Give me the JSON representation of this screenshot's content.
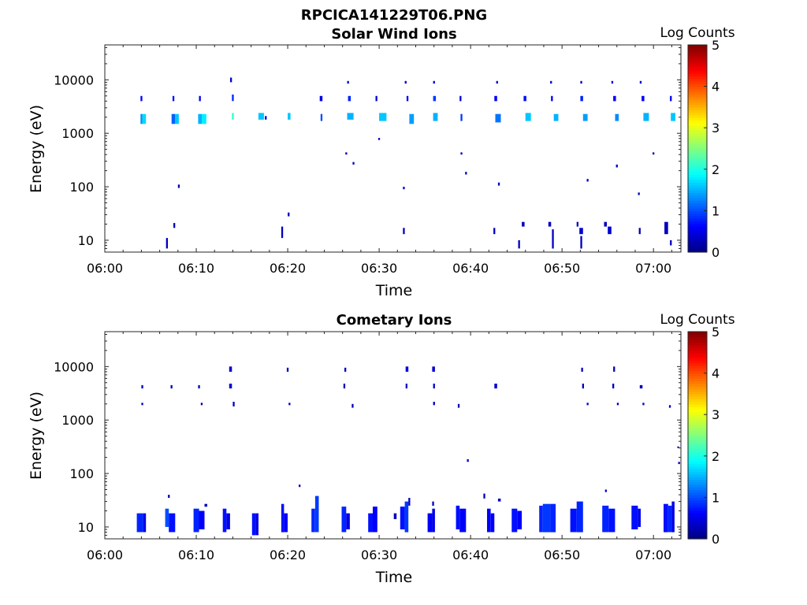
{
  "figure_title": "RPCICA141229T06.PNG",
  "chart_data": [
    {
      "type": "heatmap",
      "title": "Solar Wind Ions",
      "xlabel": "Time",
      "ylabel": "Energy (eV)",
      "x_ticks": [
        "06:00",
        "06:10",
        "06:20",
        "06:30",
        "06:40",
        "06:50",
        "07:00"
      ],
      "x_range_min": [
        0,
        63
      ],
      "y_scale": "log",
      "y_ticks": [
        "10",
        "100",
        "1000",
        "10000"
      ],
      "y_range_ev": [
        6,
        45000
      ],
      "colorbar": {
        "label": "Log Counts",
        "range": [
          0,
          5
        ],
        "ticks": [
          "0",
          "1",
          "2",
          "3",
          "4",
          "5"
        ],
        "colormap": "jet"
      },
      "cells": [
        [
          3.9,
          4.1,
          1500,
          2300,
          1.3
        ],
        [
          4.1,
          4.5,
          1500,
          2300,
          1.7
        ],
        [
          3.9,
          4.1,
          4000,
          5000,
          0.6
        ],
        [
          7.3,
          7.7,
          1500,
          2300,
          1.1
        ],
        [
          7.7,
          8.1,
          1500,
          2300,
          1.6
        ],
        [
          7.4,
          7.6,
          4000,
          5000,
          0.7
        ],
        [
          10.2,
          10.6,
          1500,
          2300,
          1.5
        ],
        [
          10.6,
          11.1,
          1500,
          2300,
          1.8
        ],
        [
          10.3,
          10.5,
          4000,
          5000,
          0.5
        ],
        [
          13.9,
          14.1,
          1800,
          2400,
          2.1
        ],
        [
          13.9,
          14.1,
          4000,
          5300,
          0.8
        ],
        [
          13.7,
          13.9,
          9000,
          11000,
          0.4
        ],
        [
          16.8,
          17.4,
          1800,
          2400,
          1.6
        ],
        [
          17.5,
          17.7,
          1800,
          2100,
          0.5
        ],
        [
          20.0,
          20.3,
          1800,
          2400,
          1.6
        ],
        [
          23.6,
          23.8,
          1700,
          2300,
          1.0
        ],
        [
          23.5,
          23.8,
          4000,
          5000,
          0.5
        ],
        [
          26.5,
          27.2,
          1800,
          2400,
          1.5
        ],
        [
          26.6,
          26.9,
          4000,
          5000,
          0.8
        ],
        [
          26.5,
          26.7,
          8500,
          9500,
          0.4
        ],
        [
          30.0,
          30.8,
          1700,
          2400,
          1.6
        ],
        [
          29.6,
          29.8,
          4000,
          5000,
          0.4
        ],
        [
          33.3,
          33.8,
          1500,
          2300,
          1.4
        ],
        [
          33.0,
          33.2,
          4000,
          5000,
          0.6
        ],
        [
          32.8,
          33.0,
          8500,
          9500,
          0.4
        ],
        [
          35.9,
          36.4,
          1700,
          2400,
          1.5
        ],
        [
          35.9,
          36.2,
          4000,
          5000,
          0.9
        ],
        [
          35.9,
          36.1,
          8500,
          9500,
          0.4
        ],
        [
          38.9,
          39.1,
          1700,
          2300,
          0.9
        ],
        [
          38.8,
          39.0,
          4000,
          5000,
          0.4
        ],
        [
          42.7,
          43.3,
          1600,
          2300,
          1.2
        ],
        [
          42.6,
          42.9,
          4000,
          5000,
          0.6
        ],
        [
          42.8,
          43.0,
          8500,
          9500,
          0.4
        ],
        [
          46.0,
          46.6,
          1700,
          2400,
          1.6
        ],
        [
          45.8,
          46.1,
          4000,
          5000,
          0.7
        ],
        [
          49.1,
          49.6,
          1700,
          2300,
          1.5
        ],
        [
          48.8,
          49.0,
          4000,
          5000,
          0.5
        ],
        [
          48.7,
          48.9,
          8500,
          9500,
          0.4
        ],
        [
          52.3,
          52.8,
          1700,
          2300,
          1.4
        ],
        [
          52.0,
          52.3,
          4000,
          5000,
          0.8
        ],
        [
          52.0,
          52.2,
          8500,
          9500,
          0.4
        ],
        [
          55.8,
          56.2,
          1700,
          2300,
          1.3
        ],
        [
          55.6,
          55.9,
          4000,
          5000,
          0.6
        ],
        [
          55.4,
          55.6,
          8500,
          9500,
          0.4
        ],
        [
          58.9,
          59.5,
          1700,
          2400,
          1.5
        ],
        [
          58.7,
          59.0,
          4000,
          5000,
          0.6
        ],
        [
          58.5,
          58.7,
          8500,
          9500,
          0.4
        ],
        [
          61.9,
          62.4,
          1700,
          2400,
          1.6
        ],
        [
          61.8,
          62.0,
          4000,
          5000,
          0.5
        ],
        [
          26.3,
          26.5,
          400,
          440,
          0.3
        ],
        [
          27.1,
          27.3,
          260,
          290,
          0.3
        ],
        [
          29.9,
          30.1,
          750,
          820,
          0.3
        ],
        [
          38.9,
          39.1,
          400,
          440,
          0.3
        ],
        [
          39.4,
          39.6,
          170,
          190,
          0.3
        ],
        [
          8.0,
          8.2,
          95,
          110,
          0.3
        ],
        [
          32.6,
          32.8,
          90,
          100,
          0.3
        ],
        [
          43.0,
          43.2,
          105,
          120,
          0.3
        ],
        [
          52.7,
          52.9,
          125,
          140,
          0.3
        ],
        [
          55.9,
          56.1,
          230,
          260,
          0.3
        ],
        [
          58.3,
          58.5,
          70,
          78,
          0.3
        ],
        [
          59.9,
          60.1,
          400,
          440,
          0.3
        ],
        [
          6.7,
          6.9,
          7,
          11,
          0.3
        ],
        [
          7.5,
          7.7,
          17,
          21,
          0.3
        ],
        [
          19.3,
          19.5,
          11,
          18,
          0.3
        ],
        [
          20.0,
          20.2,
          28,
          33,
          0.3
        ],
        [
          32.6,
          32.8,
          13,
          17,
          0.3
        ],
        [
          42.5,
          42.7,
          13,
          17,
          0.3
        ],
        [
          45.2,
          45.4,
          7,
          10,
          0.3
        ],
        [
          45.6,
          45.9,
          18,
          22,
          0.3
        ],
        [
          48.5,
          48.8,
          18,
          22,
          0.3
        ],
        [
          48.9,
          49.1,
          7,
          16,
          0.3
        ],
        [
          51.6,
          51.8,
          18,
          22,
          0.3
        ],
        [
          51.9,
          52.3,
          13,
          17,
          0.4
        ],
        [
          52.0,
          52.2,
          7,
          12,
          0.3
        ],
        [
          54.6,
          54.9,
          18,
          22,
          0.3
        ],
        [
          55.0,
          55.4,
          13,
          18,
          0.4
        ],
        [
          58.4,
          58.6,
          13,
          17,
          0.3
        ],
        [
          61.2,
          61.6,
          13,
          22,
          0.3
        ],
        [
          61.8,
          62.0,
          8,
          10,
          0.3
        ]
      ]
    },
    {
      "type": "heatmap",
      "title": "Cometary Ions",
      "xlabel": "Time",
      "ylabel": "Energy (eV)",
      "x_ticks": [
        "06:00",
        "06:10",
        "06:20",
        "06:30",
        "06:40",
        "06:50",
        "07:00"
      ],
      "x_range_min": [
        0,
        63
      ],
      "y_scale": "log",
      "y_ticks": [
        "10",
        "100",
        "1000",
        "10000"
      ],
      "y_range_ev": [
        6,
        45000
      ],
      "colorbar": {
        "label": "Log Counts",
        "range": [
          0,
          5
        ],
        "ticks": [
          "0",
          "1",
          "2",
          "3",
          "4",
          "5"
        ],
        "colormap": "jet"
      },
      "cells": [
        [
          3.5,
          4.2,
          8,
          18,
          0.8
        ],
        [
          4.2,
          4.5,
          8,
          18,
          0.5
        ],
        [
          6.6,
          7.0,
          10,
          22,
          1.0
        ],
        [
          7.0,
          7.7,
          8,
          18,
          0.7
        ],
        [
          9.7,
          10.3,
          8,
          22,
          0.8
        ],
        [
          10.3,
          10.9,
          9,
          20,
          0.6
        ],
        [
          10.9,
          11.2,
          24,
          27,
          0.3
        ],
        [
          12.9,
          13.3,
          8,
          22,
          0.7
        ],
        [
          13.3,
          13.7,
          9,
          18,
          0.5
        ],
        [
          16.1,
          16.5,
          7,
          18,
          0.7
        ],
        [
          16.5,
          16.8,
          7,
          18,
          0.5
        ],
        [
          19.3,
          19.6,
          8,
          27,
          0.7
        ],
        [
          19.6,
          20.0,
          8,
          18,
          0.6
        ],
        [
          22.6,
          23.0,
          8,
          22,
          0.8
        ],
        [
          23.0,
          23.4,
          8,
          38,
          0.9
        ],
        [
          25.9,
          26.4,
          8,
          24,
          0.8
        ],
        [
          26.4,
          26.8,
          9,
          18,
          0.5
        ],
        [
          28.8,
          29.3,
          8,
          18,
          0.7
        ],
        [
          29.3,
          29.8,
          8,
          24,
          0.6
        ],
        [
          31.6,
          31.9,
          14,
          18,
          0.3
        ],
        [
          32.3,
          32.8,
          9,
          24,
          0.7
        ],
        [
          32.8,
          33.2,
          8,
          30,
          0.9
        ],
        [
          33.2,
          33.4,
          25,
          35,
          0.3
        ],
        [
          35.3,
          35.8,
          8,
          18,
          0.6
        ],
        [
          35.8,
          36.1,
          8,
          22,
          0.5
        ],
        [
          35.8,
          36.0,
          25,
          30,
          0.3
        ],
        [
          38.4,
          38.8,
          9,
          25,
          0.7
        ],
        [
          38.8,
          39.5,
          8,
          22,
          0.6
        ],
        [
          41.8,
          42.2,
          8,
          22,
          0.6
        ],
        [
          42.2,
          42.6,
          8,
          18,
          0.6
        ],
        [
          41.4,
          41.6,
          34,
          42,
          0.3
        ],
        [
          44.5,
          45.1,
          8,
          22,
          0.7
        ],
        [
          45.1,
          45.6,
          9,
          20,
          0.6
        ],
        [
          43.0,
          43.3,
          30,
          34,
          0.3
        ],
        [
          47.5,
          47.9,
          8,
          25,
          0.8
        ],
        [
          47.9,
          48.7,
          8,
          27,
          0.9
        ],
        [
          48.7,
          49.3,
          8,
          27,
          0.8
        ],
        [
          50.9,
          51.6,
          8,
          22,
          0.7
        ],
        [
          51.6,
          52.3,
          8,
          30,
          0.8
        ],
        [
          54.4,
          55.1,
          8,
          25,
          0.8
        ],
        [
          55.1,
          55.8,
          8,
          22,
          0.7
        ],
        [
          57.6,
          58.3,
          9,
          25,
          0.7
        ],
        [
          58.3,
          58.6,
          10,
          22,
          0.5
        ],
        [
          61.1,
          61.6,
          8,
          27,
          0.7
        ],
        [
          61.6,
          62.0,
          8,
          25,
          0.8
        ],
        [
          62.0,
          62.3,
          8,
          30,
          0.5
        ],
        [
          4.0,
          4.2,
          3900,
          4500,
          0.3
        ],
        [
          4.0,
          4.2,
          1900,
          2100,
          0.3
        ],
        [
          7.2,
          7.4,
          3900,
          4500,
          0.3
        ],
        [
          10.2,
          10.4,
          3900,
          4500,
          0.3
        ],
        [
          10.5,
          10.7,
          1900,
          2100,
          0.3
        ],
        [
          13.6,
          13.9,
          3900,
          4800,
          0.4
        ],
        [
          13.6,
          13.9,
          8000,
          10000,
          0.4
        ],
        [
          14.0,
          14.2,
          1800,
          2200,
          0.3
        ],
        [
          19.9,
          20.1,
          8000,
          9500,
          0.3
        ],
        [
          20.1,
          20.3,
          1900,
          2100,
          0.3
        ],
        [
          26.2,
          26.4,
          8000,
          9500,
          0.3
        ],
        [
          26.1,
          26.3,
          3900,
          4800,
          0.3
        ],
        [
          27.0,
          27.2,
          1700,
          2000,
          0.3
        ],
        [
          32.9,
          33.2,
          8000,
          10000,
          0.5
        ],
        [
          32.9,
          33.1,
          3900,
          4800,
          0.4
        ],
        [
          35.9,
          36.1,
          3900,
          4800,
          0.4
        ],
        [
          35.8,
          36.1,
          8000,
          10000,
          0.4
        ],
        [
          35.9,
          36.1,
          1900,
          2200,
          0.3
        ],
        [
          38.6,
          38.8,
          1700,
          2000,
          0.3
        ],
        [
          42.6,
          42.9,
          3900,
          4800,
          0.4
        ],
        [
          52.2,
          52.4,
          3900,
          4800,
          0.3
        ],
        [
          52.1,
          52.3,
          8000,
          9500,
          0.3
        ],
        [
          52.7,
          52.9,
          1900,
          2100,
          0.3
        ],
        [
          55.5,
          55.7,
          3900,
          4800,
          0.3
        ],
        [
          55.6,
          55.8,
          8000,
          10000,
          0.3
        ],
        [
          56.0,
          56.2,
          1900,
          2100,
          0.3
        ],
        [
          58.5,
          58.8,
          3900,
          4500,
          0.3
        ],
        [
          58.8,
          59.0,
          1900,
          2100,
          0.3
        ],
        [
          61.7,
          61.9,
          1700,
          1900,
          0.3
        ],
        [
          39.6,
          39.8,
          165,
          185,
          0.3
        ],
        [
          62.6,
          62.8,
          300,
          320,
          0.3
        ],
        [
          62.7,
          62.9,
          150,
          165,
          0.3
        ],
        [
          21.2,
          21.4,
          56,
          62,
          0.3
        ],
        [
          54.7,
          54.9,
          45,
          50,
          0.3
        ],
        [
          6.9,
          7.1,
          35,
          40,
          0.3
        ]
      ]
    }
  ]
}
